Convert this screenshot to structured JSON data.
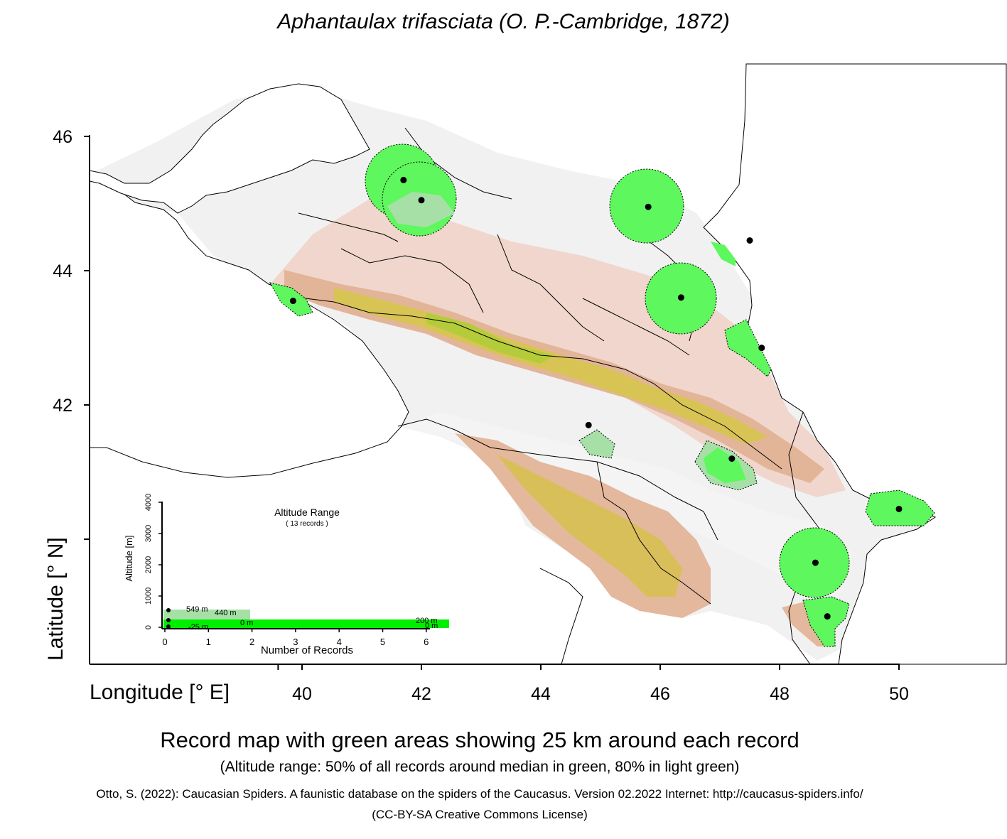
{
  "title": "Aphantaulax trifasciata (O. P.-Cambridge, 1872)",
  "axes": {
    "x_label": "Longitude [° E]",
    "y_label": "Latitude [° N]",
    "x_ticks": [
      "40",
      "42",
      "44",
      "46",
      "48",
      "50"
    ],
    "y_ticks": [
      "46",
      "44",
      "42"
    ]
  },
  "caption": "Record map with green areas showing 25 km around each record",
  "subcaption": "(Altitude range: 50% of all records around median in green, 80% in light green)",
  "citation": "Otto, S. (2022): Caucasian Spiders. A faunistic database on the spiders of the Caucasus. Version 02.2022 Internet: http://caucasus-spiders.info/",
  "license": "(CC-BY-SA Creative Commons License)",
  "records": [
    {
      "lon": 41.7,
      "lat": 45.35
    },
    {
      "lon": 42.0,
      "lat": 45.05
    },
    {
      "lon": 45.8,
      "lat": 44.95
    },
    {
      "lon": 47.5,
      "lat": 44.45
    },
    {
      "lon": 46.35,
      "lat": 43.6
    },
    {
      "lon": 39.85,
      "lat": 43.55
    },
    {
      "lon": 47.7,
      "lat": 42.85
    },
    {
      "lon": 44.8,
      "lat": 41.7
    },
    {
      "lon": 47.2,
      "lat": 41.2
    },
    {
      "lon": 50.0,
      "lat": 40.45
    },
    {
      "lon": 48.6,
      "lat": 39.65
    },
    {
      "lon": 48.8,
      "lat": 38.85
    }
  ],
  "inset": {
    "title": "Altitude Range",
    "subtitle": "( 13 records )",
    "y_label": "Altitude [m]",
    "x_label": "Number of Records",
    "y_ticks": [
      "0",
      "1000",
      "2000",
      "3000",
      "4000"
    ],
    "x_ticks": [
      "0",
      "1",
      "2",
      "3",
      "4",
      "5",
      "6"
    ],
    "labels": [
      {
        "text": "549  m",
        "alt": 549
      },
      {
        "text": "440  m",
        "alt": 440
      },
      {
        "text": "200  m",
        "alt": 200
      },
      {
        "text": "0  m",
        "alt": 0
      },
      {
        "text": "0  m",
        "alt": 0
      },
      {
        "text": "-25  m",
        "alt": -25
      }
    ]
  },
  "colors": {
    "range_50": "#5ef75e",
    "range_80": "#a6e0a6",
    "bar_green": "#00ee00",
    "lowland": "#f1f1f1",
    "foothills": "#e8b8a4",
    "mountains": "#d9c24a",
    "peaks": "#9acd32"
  }
}
